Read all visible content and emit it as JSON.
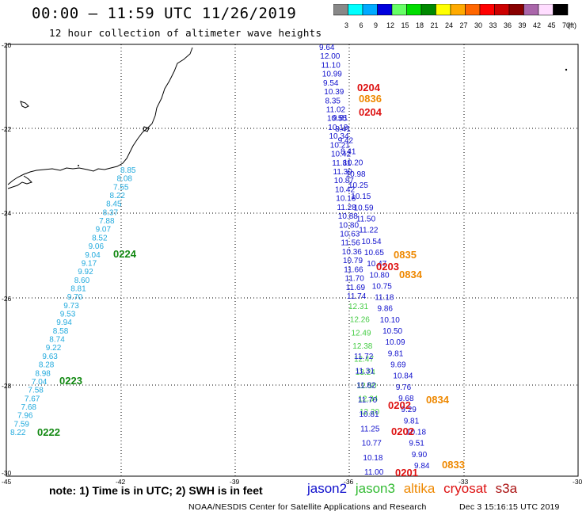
{
  "header": {
    "title": "00:00 – 11:59 UTC 11/26/2019",
    "subtitle": "12 hour collection of altimeter wave heights"
  },
  "color_scale": {
    "colors": [
      "#888888",
      "#00ffff",
      "#00aaff",
      "#0000dd",
      "#66ff66",
      "#00dd00",
      "#008800",
      "#ffff00",
      "#ffaa00",
      "#ff6600",
      "#ff0000",
      "#cc0000",
      "#880000",
      "#aa66aa",
      "#ffddff",
      "#000000"
    ],
    "labels": [
      "3",
      "6",
      "9",
      "12",
      "15",
      "18",
      "21",
      "24",
      "27",
      "30",
      "33",
      "36",
      "39",
      "42",
      "45",
      "70",
      "(ft)"
    ]
  },
  "axes": {
    "x_ticks": [
      "-45",
      "-42",
      "-39",
      "-36",
      "-33",
      "-30"
    ],
    "y_ticks": [
      "-20",
      "-22",
      "-24",
      "-26",
      "-28",
      "-30"
    ]
  },
  "colors": {
    "jason2": "#1010cc",
    "jason3": "#44cc44",
    "altika": "#ee8800",
    "cryosat": "#dd1111",
    "s3a": "#aa1111",
    "track_light": "#22aadd",
    "time_green": "#118811"
  },
  "tracks": {
    "t0222": {
      "time_label": "0222",
      "values": [
        "8.85",
        "8.08",
        "7.55",
        "8.22",
        "8.45",
        "8.37",
        "7.88",
        "9.07",
        "8.52",
        "9.06",
        "9.04",
        "9.17",
        "9.92",
        "8.60",
        "8.81",
        "9.70",
        "9.73",
        "9.53",
        "9.94",
        "8.58",
        "8.74",
        "9.22",
        "9.63",
        "8.28",
        "8.98",
        "7.04",
        "7.58",
        "7.67",
        "7.68",
        "7.96",
        "7.59",
        "8.22"
      ]
    },
    "t0224": {
      "time_label": "0224"
    },
    "t0223": {
      "time_label": "0223"
    },
    "north": {
      "values": [
        "9.64",
        "12.00",
        "11.10",
        "10.99",
        "9.54",
        "10.39",
        "8.35",
        "11.02",
        "10.55",
        "10.13",
        "10.34",
        "10.21",
        "10.42",
        "11.81",
        "11.39",
        "10.87",
        "10.42",
        "10.16",
        "11.28",
        "10.88",
        "10.80",
        "10.63",
        "11.56",
        "10.36",
        "10.79",
        "11.66",
        "11.70",
        "11.69",
        "11.74"
      ]
    },
    "mid_blue": {
      "values": [
        "9.81",
        "8.41",
        "9.42",
        "8.41",
        "10.20",
        "10.98",
        "10.25",
        "10.15",
        "10.59",
        "11.50",
        "11.22",
        "10.54",
        "10.65",
        "10.47",
        "10.80",
        "10.75",
        "11.18",
        "9.86",
        "10.10",
        "10.50",
        "10.09",
        "9.81",
        "9.69",
        "10.84",
        "9.76",
        "9.68",
        "9.29",
        "9.81",
        "10.18",
        "9.51",
        "9.90",
        "9.84"
      ]
    },
    "jason3_track": {
      "values": [
        "12.31",
        "12.26",
        "12.49",
        "12.38",
        "12.47",
        "13.24",
        "12.50",
        "12.34",
        "12.20"
      ]
    },
    "south_blue": {
      "values": [
        "11.72",
        "11.31",
        "11.82",
        "11.70",
        "10.81",
        "11.25",
        "10.77",
        "10.18",
        "11.00"
      ]
    }
  },
  "time_labels": {
    "t0204a": "0204",
    "t0836": "0836",
    "t0204b": "0204",
    "t0835": "0835",
    "t0203": "0203",
    "t0834a": "0834",
    "t0834b": "0834",
    "t0202a": "0202",
    "t0202b": "0202",
    "t0833": "0833",
    "t0201": "0201"
  },
  "footer": {
    "note": "note: 1) Time is in UTC; 2) SWH is in feet",
    "legend": [
      "jason2",
      "jason3",
      "altika",
      "cryosat",
      "s3a"
    ],
    "credit": "NOAA/NESDIS Center for Satellite Applications and Research",
    "timestamp": "Dec  3 15:16:15 UTC 2019"
  }
}
